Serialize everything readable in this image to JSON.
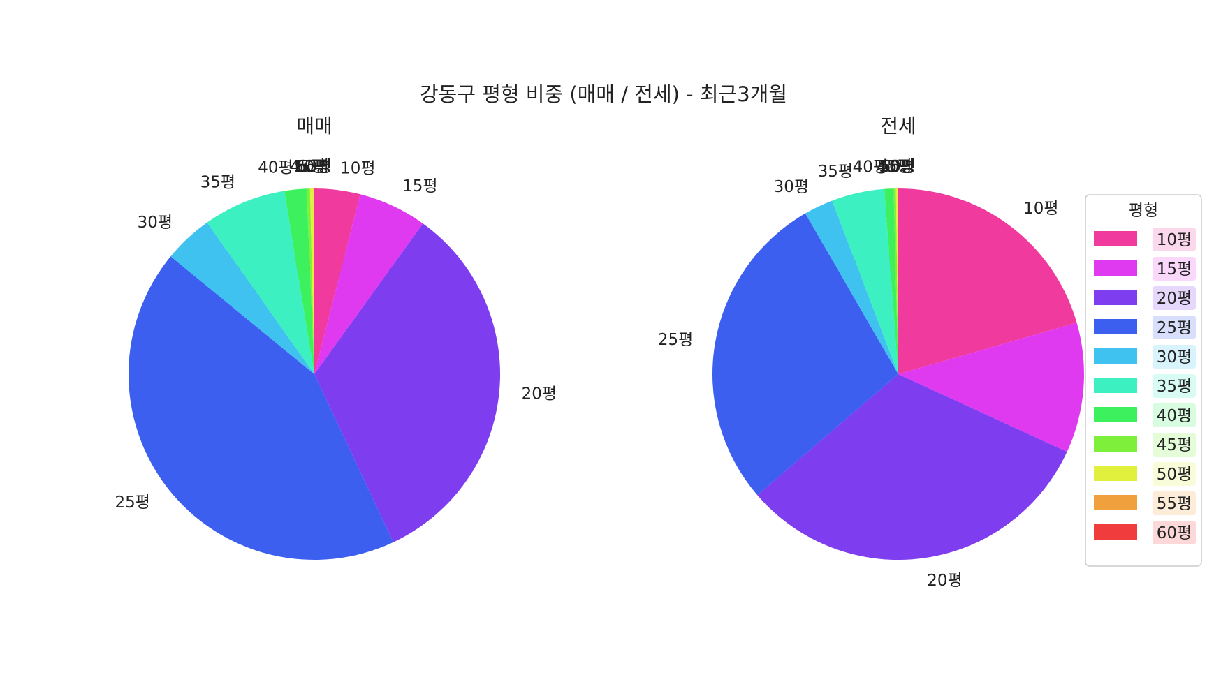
{
  "figure": {
    "title": "강동구 평형 비중 (매매 / 전세) - 최근3개월"
  },
  "colors": {
    "10평": "#f03a9e",
    "15평": "#e03af0",
    "20평": "#7e3ef0",
    "25평": "#3c5ff0",
    "30평": "#40c2f0",
    "35平": "#3cf0c2",
    "40평": "#3cf05e",
    "45평": "#7ef03c",
    "50평": "#e0f03c",
    "55평": "#f0a03c",
    "60평": "#f03c3c"
  },
  "chart_data": [
    {
      "type": "pie",
      "title": "매매",
      "start_angle_deg": 90,
      "direction": "clockwise",
      "slices": [
        {
          "label": "10평",
          "value": 54,
          "pct_label": "4.0% (54)"
        },
        {
          "label": "15평",
          "value": 81,
          "pct_label": "6.0% (81)"
        },
        {
          "label": "20평",
          "value": 449,
          "pct_label": "33.1% (449)"
        },
        {
          "label": "25평",
          "value": 583,
          "pct_label": "42.9% (583)"
        },
        {
          "label": "30평",
          "value": 58,
          "pct_label": "4.3% (58)"
        },
        {
          "label": "35평",
          "value": 98,
          "pct_label": "7.2% (98)"
        },
        {
          "label": "40평",
          "value": 26,
          "pct_label": "1.9% (26)"
        },
        {
          "label": "45평",
          "value": 4,
          "pct_label": "0.3% (4)"
        },
        {
          "label": "50평",
          "value": 4,
          "pct_label": "0.3% (4)"
        },
        {
          "label": "55평",
          "value": 1,
          "pct_label": "0.1% (1)"
        },
        {
          "label": "60평",
          "value": 0,
          "pct_label": "0.0% (0)"
        }
      ]
    },
    {
      "type": "pie",
      "title": "전세",
      "start_angle_deg": 90,
      "direction": "clockwise",
      "slices": [
        {
          "label": "10평",
          "value": 719,
          "pct_label": "20.5% (719)"
        },
        {
          "label": "15평",
          "value": 397,
          "pct_label": "11.3% (397)"
        },
        {
          "label": "20평",
          "value": 1115,
          "pct_label": "31.8% (1115)"
        },
        {
          "label": "25평",
          "value": 979,
          "pct_label": "27.9% (979)"
        },
        {
          "label": "30평",
          "value": 89,
          "pct_label": "2.5% (89)"
        },
        {
          "label": "35평",
          "value": 161,
          "pct_label": "4.6% (161)"
        },
        {
          "label": "40평",
          "value": 28,
          "pct_label": "0.8% (28)"
        },
        {
          "label": "45평",
          "value": 7,
          "pct_label": "0.2% (7)"
        },
        {
          "label": "50평",
          "value": 5,
          "pct_label": "0.1% (5)"
        },
        {
          "label": "55평",
          "value": 1,
          "pct_label": "0.0% (1)"
        },
        {
          "label": "60평",
          "value": 1,
          "pct_label": "0.0% (1)"
        }
      ]
    }
  ],
  "legend": {
    "title": "평형",
    "placement": "right",
    "items": [
      "10평",
      "15평",
      "20평",
      "25평",
      "30평",
      "35평",
      "40평",
      "45평",
      "50평",
      "55평",
      "60평"
    ]
  }
}
